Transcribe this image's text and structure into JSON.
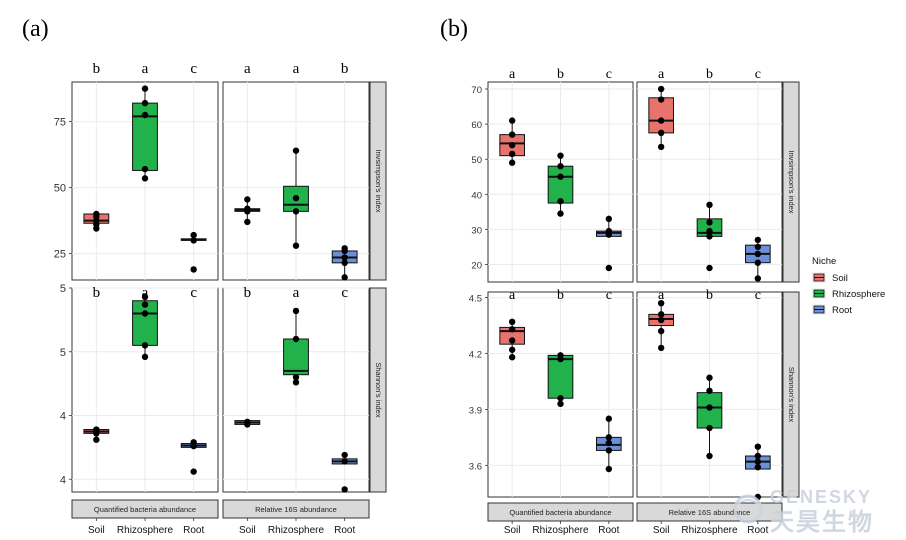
{
  "colors": {
    "soil": "#e8736c",
    "rhizosphere": "#22b24c",
    "root": "#6b8fd8",
    "strip": "#d9d9d9",
    "grid": "#ebebeb"
  },
  "panel_labels": [
    "(a)",
    "(b)"
  ],
  "legend": {
    "title": "Niche",
    "items": [
      {
        "key": "soil",
        "label": "Soil"
      },
      {
        "key": "rhizosphere",
        "label": "Rhizosphere"
      },
      {
        "key": "root",
        "label": "Root"
      }
    ]
  },
  "watermark": {
    "line1": "GENESKY",
    "line2": "天昊生物"
  },
  "chart_data": [
    {
      "type": "box",
      "figure": "a",
      "categories": [
        "Soil",
        "Rhizosphere",
        "Root"
      ],
      "row_strips": [
        "Invsimpson's index",
        "Shannon's index"
      ],
      "col_strips": [
        "Quantified bacteria abundance",
        "Relative 16S abundance"
      ],
      "rows": [
        {
          "ylim": [
            15,
            90
          ],
          "yticks": [
            25,
            50,
            75
          ],
          "panels": [
            {
              "letters": [
                "b",
                "a",
                "c"
              ],
              "boxes": [
                {
                  "q1": 36.5,
                  "median": 37.5,
                  "q3": 40,
                  "whisker_low": 34.5,
                  "whisker_high": 40,
                  "points": [
                    34.5,
                    36,
                    37.5,
                    39,
                    40
                  ]
                },
                {
                  "q1": 56.5,
                  "median": 77,
                  "q3": 82,
                  "whisker_low": 53.5,
                  "whisker_high": 87.5,
                  "points": [
                    53.5,
                    57,
                    77.5,
                    82,
                    87.5
                  ]
                },
                {
                  "q1": 30,
                  "median": 30.3,
                  "q3": 30.6,
                  "whisker_low": 30,
                  "whisker_high": 30.6,
                  "points": [
                    19,
                    30,
                    32
                  ]
                }
              ]
            },
            {
              "letters": [
                "a",
                "a",
                "b"
              ],
              "boxes": [
                {
                  "q1": 41,
                  "median": 41.5,
                  "q3": 42,
                  "whisker_low": 37,
                  "whisker_high": 45.5,
                  "points": [
                    37,
                    41,
                    42,
                    45.5
                  ]
                },
                {
                  "q1": 41,
                  "median": 43.5,
                  "q3": 50.5,
                  "whisker_low": 28,
                  "whisker_high": 64,
                  "points": [
                    28,
                    41,
                    46,
                    64
                  ]
                },
                {
                  "q1": 21.5,
                  "median": 23.5,
                  "q3": 26,
                  "whisker_low": 16,
                  "whisker_high": 27,
                  "points": [
                    16,
                    21.5,
                    23.5,
                    26,
                    27
                  ]
                }
              ]
            }
          ]
        },
        {
          "ylim": [
            3.4,
            5.0
          ],
          "yticks": [
            3.5,
            4.0,
            4.5,
            5.0
          ],
          "panels": [
            {
              "letters": [
                "b",
                "a",
                "c"
              ],
              "boxes": [
                {
                  "q1": 3.86,
                  "median": 3.875,
                  "q3": 3.89,
                  "whisker_low": 3.81,
                  "whisker_high": 3.9,
                  "points": [
                    3.81,
                    3.86,
                    3.88,
                    3.89
                  ]
                },
                {
                  "q1": 4.55,
                  "median": 4.8,
                  "q3": 4.9,
                  "whisker_low": 4.46,
                  "whisker_high": 4.93,
                  "points": [
                    4.46,
                    4.55,
                    4.8,
                    4.87,
                    4.93
                  ]
                },
                {
                  "q1": 3.75,
                  "median": 3.765,
                  "q3": 3.78,
                  "whisker_low": 3.75,
                  "whisker_high": 3.8,
                  "points": [
                    3.56,
                    3.76,
                    3.79
                  ]
                }
              ]
            },
            {
              "letters": [
                "b",
                "a",
                "c"
              ],
              "boxes": [
                {
                  "q1": 3.93,
                  "median": 3.945,
                  "q3": 3.96,
                  "whisker_low": 3.93,
                  "whisker_high": 3.96,
                  "points": [
                    3.93,
                    3.95
                  ]
                },
                {
                  "q1": 4.32,
                  "median": 4.35,
                  "q3": 4.6,
                  "whisker_low": 4.26,
                  "whisker_high": 4.82,
                  "points": [
                    4.26,
                    4.3,
                    4.6,
                    4.82
                  ]
                },
                {
                  "q1": 3.62,
                  "median": 3.64,
                  "q3": 3.66,
                  "whisker_low": 3.62,
                  "whisker_high": 3.69,
                  "points": [
                    3.42,
                    3.64,
                    3.69
                  ]
                }
              ]
            }
          ]
        }
      ]
    },
    {
      "type": "box",
      "figure": "b",
      "categories": [
        "Soil",
        "Rhizosphere",
        "Root"
      ],
      "row_strips": [
        "Invsimpson's index",
        "Shannon's index"
      ],
      "col_strips": [
        "Quantified bacteria abundance",
        "Relative 16S abundance"
      ],
      "rows": [
        {
          "ylim": [
            15,
            72
          ],
          "yticks": [
            20,
            30,
            40,
            50,
            60,
            70
          ],
          "panels": [
            {
              "letters": [
                "a",
                "b",
                "c"
              ],
              "boxes": [
                {
                  "q1": 51,
                  "median": 54.5,
                  "q3": 57,
                  "whisker_low": 49,
                  "whisker_high": 61,
                  "points": [
                    49,
                    51.5,
                    54,
                    57,
                    61
                  ]
                },
                {
                  "q1": 37.5,
                  "median": 45,
                  "q3": 48,
                  "whisker_low": 34.5,
                  "whisker_high": 51,
                  "points": [
                    34.5,
                    38,
                    45,
                    48,
                    51
                  ]
                },
                {
                  "q1": 28,
                  "median": 29,
                  "q3": 29.5,
                  "whisker_low": 28,
                  "whisker_high": 33,
                  "points": [
                    19,
                    28.5,
                    29.5,
                    33
                  ]
                }
              ]
            },
            {
              "letters": [
                "a",
                "b",
                "c"
              ],
              "boxes": [
                {
                  "q1": 57.5,
                  "median": 61,
                  "q3": 67.5,
                  "whisker_low": 53.5,
                  "whisker_high": 70,
                  "points": [
                    53.5,
                    57.5,
                    61,
                    67,
                    70
                  ]
                },
                {
                  "q1": 28,
                  "median": 29,
                  "q3": 33,
                  "whisker_low": 27.5,
                  "whisker_high": 37,
                  "points": [
                    19,
                    28,
                    29.5,
                    32,
                    37
                  ]
                },
                {
                  "q1": 20.5,
                  "median": 23,
                  "q3": 25.5,
                  "whisker_low": 16,
                  "whisker_high": 27,
                  "points": [
                    16,
                    20.5,
                    23,
                    25,
                    27
                  ]
                }
              ]
            }
          ]
        },
        {
          "ylim": [
            3.43,
            4.53
          ],
          "yticks": [
            3.6,
            3.9,
            4.2,
            4.5
          ],
          "panels": [
            {
              "letters": [
                "a",
                "b",
                "c"
              ],
              "boxes": [
                {
                  "q1": 4.25,
                  "median": 4.32,
                  "q3": 4.34,
                  "whisker_low": 4.18,
                  "whisker_high": 4.37,
                  "points": [
                    4.18,
                    4.22,
                    4.27,
                    4.33,
                    4.37
                  ]
                },
                {
                  "q1": 3.96,
                  "median": 4.17,
                  "q3": 4.19,
                  "whisker_low": 3.93,
                  "whisker_high": 4.19,
                  "points": [
                    3.93,
                    3.96,
                    4.17,
                    4.19
                  ]
                },
                {
                  "q1": 3.68,
                  "median": 3.71,
                  "q3": 3.75,
                  "whisker_low": 3.58,
                  "whisker_high": 3.85,
                  "points": [
                    3.58,
                    3.68,
                    3.72,
                    3.75,
                    3.85
                  ]
                }
              ]
            },
            {
              "letters": [
                "a",
                "b",
                "c"
              ],
              "boxes": [
                {
                  "q1": 4.35,
                  "median": 4.385,
                  "q3": 4.41,
                  "whisker_low": 4.23,
                  "whisker_high": 4.47,
                  "points": [
                    4.23,
                    4.32,
                    4.38,
                    4.41,
                    4.47
                  ]
                },
                {
                  "q1": 3.8,
                  "median": 3.91,
                  "q3": 3.99,
                  "whisker_low": 3.65,
                  "whisker_high": 4.07,
                  "points": [
                    3.65,
                    3.8,
                    3.91,
                    4.0,
                    4.07
                  ]
                },
                {
                  "q1": 3.58,
                  "median": 3.62,
                  "q3": 3.65,
                  "whisker_low": 3.58,
                  "whisker_high": 3.7,
                  "points": [
                    3.43,
                    3.59,
                    3.62,
                    3.65,
                    3.7
                  ]
                }
              ]
            }
          ]
        }
      ]
    }
  ]
}
